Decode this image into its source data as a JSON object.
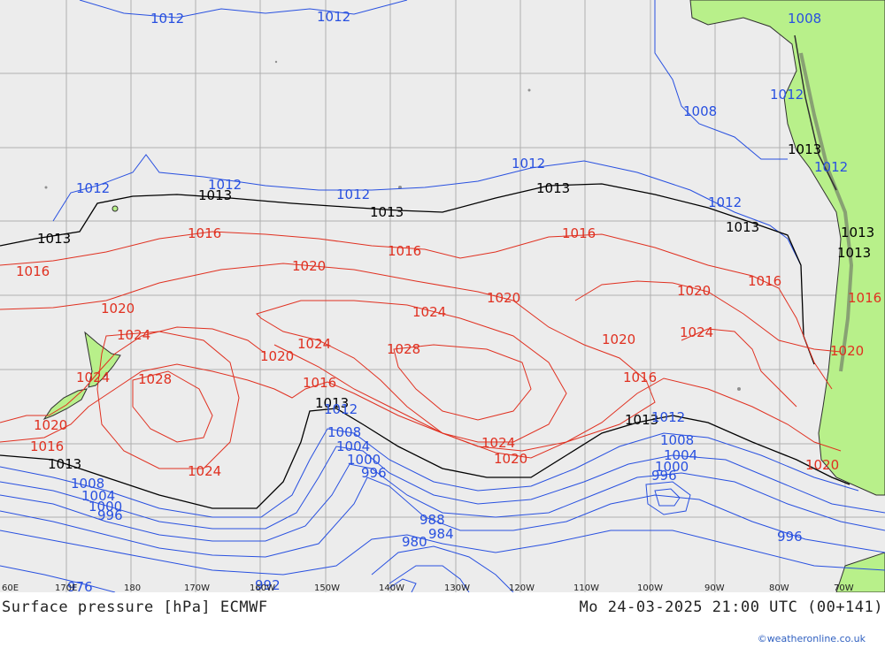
{
  "title": "Surface pressure [hPa] ECMWF",
  "valid_time": "Mo 24-03-2025 21:00 UTC (00+141)",
  "credit": "©weatheronline.co.uk",
  "longitude_ticks": [
    "60E",
    "170E",
    "180",
    "170W",
    "160W",
    "150W",
    "140W",
    "130W",
    "120W",
    "110W",
    "100W",
    "90W",
    "80W",
    "70W"
  ],
  "colors": {
    "ocean": "#ececec",
    "land": "#b8f08a",
    "grid": "#b0b0b0",
    "isobar_low": "#2850e0",
    "isobar_standard": "#000000",
    "isobar_high": "#e03020",
    "coast": "#303030"
  },
  "isobars": {
    "1012": {
      "label": "1012"
    },
    "1013": {
      "label": "1013"
    },
    "1016": {
      "label": "1016"
    },
    "1020": {
      "label": "1020"
    },
    "1024": {
      "label": "1024"
    },
    "1028": {
      "label": "1028"
    },
    "1008": {
      "label": "1008"
    },
    "1004": {
      "label": "1004"
    },
    "1000": {
      "label": "1000"
    },
    "996": {
      "label": "996"
    },
    "992": {
      "label": "992"
    },
    "988": {
      "label": "988"
    },
    "984": {
      "label": "984"
    },
    "980": {
      "label": "980"
    },
    "976": {
      "label": "976"
    }
  }
}
